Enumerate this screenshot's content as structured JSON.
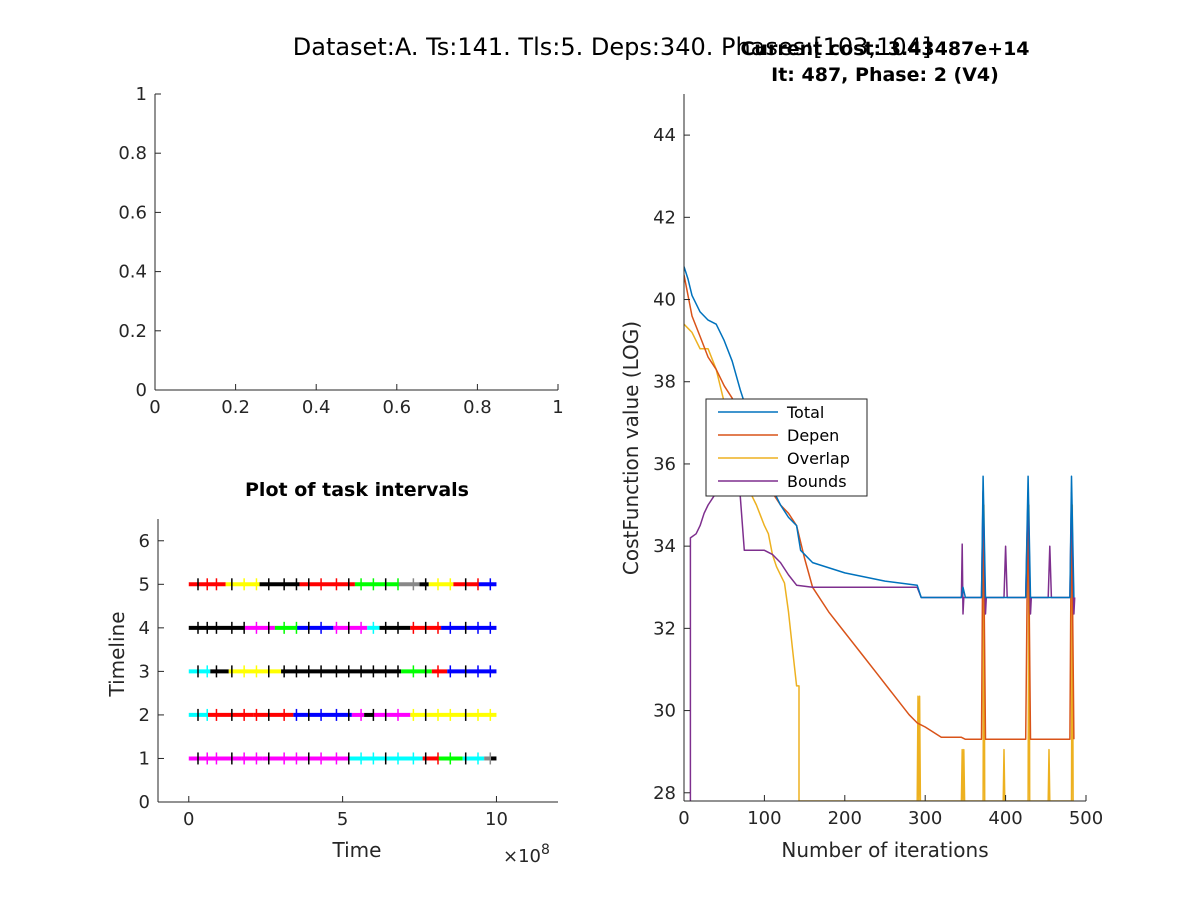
{
  "figure": {
    "suptitle": "Dataset:A. Ts:141. Tls:5. Deps:340. Phases:[103,104]"
  },
  "chart_data": [
    {
      "type": "line",
      "title": "",
      "xlabel": "",
      "ylabel": "",
      "xlim": [
        0,
        1
      ],
      "ylim": [
        0,
        1
      ],
      "xticks": [
        "0",
        "0.2",
        "0.4",
        "0.6",
        "0.8",
        "1"
      ],
      "yticks": [
        "0",
        "0.2",
        "0.4",
        "0.6",
        "0.8",
        "1"
      ],
      "series": []
    },
    {
      "type": "scatter",
      "title": "Plot of task intervals",
      "xlabel": "Time",
      "ylabel": "Timeline",
      "x_multiplier_label": "×10",
      "x_multiplier_exp": "8",
      "xlim": [
        -1,
        12
      ],
      "ylim": [
        0,
        6.5
      ],
      "xticks": [
        "0",
        "5",
        "10"
      ],
      "yticks": [
        "0",
        "1",
        "2",
        "3",
        "4",
        "5",
        "6"
      ],
      "timelines": [
        {
          "y": 1,
          "segments": [
            [
              0,
              1.7,
              "#ff00ff"
            ],
            [
              1.7,
              2.4,
              "#ff00ff"
            ],
            [
              2.4,
              5.2,
              "#ff00ff"
            ],
            [
              5.2,
              7.6,
              "#00ffff"
            ],
            [
              7.6,
              8.1,
              "#ff0000"
            ],
            [
              8.1,
              8.9,
              "#00ff00"
            ],
            [
              8.9,
              9.6,
              "#00ffff"
            ],
            [
              9.6,
              9.8,
              "#888888"
            ],
            [
              9.8,
              10,
              "#000000"
            ]
          ]
        },
        {
          "y": 2,
          "segments": [
            [
              0,
              0.6,
              "#00ffff"
            ],
            [
              0.6,
              2.1,
              "#ff0000"
            ],
            [
              2.1,
              3.4,
              "#ff0000"
            ],
            [
              3.4,
              5.3,
              "#0000ff"
            ],
            [
              5.3,
              5.7,
              "#ff00ff"
            ],
            [
              5.7,
              6.0,
              "#000000"
            ],
            [
              6.0,
              7.2,
              "#ff00ff"
            ],
            [
              7.2,
              10,
              "#ffff00"
            ]
          ]
        },
        {
          "y": 3,
          "segments": [
            [
              0,
              0.7,
              "#00ffff"
            ],
            [
              0.7,
              1.3,
              "#000000"
            ],
            [
              1.3,
              3.0,
              "#ffff00"
            ],
            [
              3.0,
              6.9,
              "#000000"
            ],
            [
              6.9,
              7.9,
              "#00ff00"
            ],
            [
              7.9,
              8.4,
              "#ff0000"
            ],
            [
              8.4,
              10,
              "#0000ff"
            ]
          ]
        },
        {
          "y": 4,
          "segments": [
            [
              0,
              1.8,
              "#000000"
            ],
            [
              1.8,
              2.8,
              "#ff00ff"
            ],
            [
              2.8,
              3.5,
              "#00ff00"
            ],
            [
              3.5,
              4.7,
              "#0000ff"
            ],
            [
              4.7,
              5.8,
              "#ff00ff"
            ],
            [
              5.8,
              6.2,
              "#00ffff"
            ],
            [
              6.2,
              7.2,
              "#000000"
            ],
            [
              7.2,
              8.2,
              "#ff0000"
            ],
            [
              8.2,
              10,
              "#0000ff"
            ]
          ]
        },
        {
          "y": 5,
          "segments": [
            [
              0,
              1.2,
              "#ff0000"
            ],
            [
              1.2,
              2.3,
              "#ffff00"
            ],
            [
              2.3,
              3.6,
              "#000000"
            ],
            [
              3.6,
              5.4,
              "#ff0000"
            ],
            [
              5.4,
              6.8,
              "#00ff00"
            ],
            [
              6.8,
              7.5,
              "#888888"
            ],
            [
              7.5,
              7.8,
              "#000000"
            ],
            [
              7.8,
              8.6,
              "#ffff00"
            ],
            [
              8.6,
              9.4,
              "#ff0000"
            ],
            [
              9.4,
              10,
              "#0000ff"
            ]
          ]
        }
      ],
      "tick_marks": [
        0.3,
        0.6,
        0.9,
        1.4,
        1.8,
        2.2,
        2.6,
        3.1,
        3.5,
        3.9,
        4.3,
        4.8,
        5.2,
        5.6,
        6.0,
        6.4,
        6.8,
        7.3,
        7.7,
        8.1,
        8.5,
        9.0,
        9.4,
        9.8
      ]
    },
    {
      "type": "line",
      "title": "Current cost: 3.43487e+14",
      "subtitle": "It: 487, Phase: 2 (V4)",
      "xlabel": "Number of iterations",
      "ylabel": "CostFunction value (LOG)",
      "xlim": [
        0,
        500
      ],
      "ylim": [
        27.8,
        45
      ],
      "xticks": [
        "0",
        "100",
        "200",
        "300",
        "400",
        "500"
      ],
      "yticks": [
        "28",
        "30",
        "32",
        "34",
        "36",
        "38",
        "40",
        "42",
        "44"
      ],
      "legend_position": "center-left",
      "series": [
        {
          "name": "Total",
          "color": "#0072bd",
          "points": [
            [
              0,
              40.8
            ],
            [
              5,
              40.5
            ],
            [
              10,
              40.1
            ],
            [
              20,
              39.7
            ],
            [
              30,
              39.5
            ],
            [
              40,
              39.4
            ],
            [
              50,
              39.0
            ],
            [
              60,
              38.5
            ],
            [
              70,
              37.8
            ],
            [
              80,
              37.2
            ],
            [
              90,
              36.6
            ],
            [
              100,
              36.0
            ],
            [
              110,
              35.4
            ],
            [
              120,
              35.0
            ],
            [
              130,
              34.7
            ],
            [
              140,
              34.5
            ],
            [
              145,
              33.9
            ],
            [
              160,
              33.6
            ],
            [
              200,
              33.35
            ],
            [
              250,
              33.15
            ],
            [
              290,
              33.05
            ],
            [
              295,
              32.75
            ],
            [
              345,
              32.75
            ],
            [
              347,
              33.0
            ],
            [
              350,
              32.75
            ],
            [
              370,
              32.75
            ],
            [
              372,
              35.7
            ],
            [
              375,
              32.75
            ],
            [
              425,
              32.75
            ],
            [
              428,
              35.7
            ],
            [
              431,
              32.75
            ],
            [
              480,
              32.75
            ],
            [
              482,
              35.7
            ],
            [
              485,
              32.75
            ]
          ]
        },
        {
          "name": "Depen",
          "color": "#d95319",
          "points": [
            [
              0,
              40.6
            ],
            [
              5,
              40.1
            ],
            [
              10,
              39.6
            ],
            [
              20,
              39.1
            ],
            [
              30,
              38.6
            ],
            [
              40,
              38.3
            ],
            [
              50,
              37.9
            ],
            [
              60,
              37.6
            ],
            [
              70,
              37.2
            ],
            [
              80,
              36.8
            ],
            [
              90,
              36.3
            ],
            [
              100,
              35.7
            ],
            [
              110,
              35.3
            ],
            [
              120,
              35.0
            ],
            [
              130,
              34.8
            ],
            [
              140,
              34.5
            ],
            [
              150,
              33.7
            ],
            [
              160,
              33.0
            ],
            [
              180,
              32.4
            ],
            [
              200,
              31.9
            ],
            [
              220,
              31.4
            ],
            [
              240,
              30.9
            ],
            [
              260,
              30.4
            ],
            [
              280,
              29.9
            ],
            [
              290,
              29.7
            ],
            [
              300,
              29.6
            ],
            [
              320,
              29.35
            ],
            [
              345,
              29.35
            ],
            [
              350,
              29.3
            ],
            [
              370,
              29.3
            ],
            [
              372,
              35.3
            ],
            [
              375,
              29.3
            ],
            [
              425,
              29.3
            ],
            [
              428,
              35.3
            ],
            [
              431,
              29.3
            ],
            [
              480,
              29.3
            ],
            [
              482,
              35.3
            ],
            [
              485,
              29.3
            ]
          ]
        },
        {
          "name": "Overlap",
          "color": "#edb120",
          "points": [
            [
              0,
              39.4
            ],
            [
              5,
              39.3
            ],
            [
              10,
              39.2
            ],
            [
              20,
              38.8
            ],
            [
              30,
              38.8
            ],
            [
              40,
              38.3
            ],
            [
              50,
              37.5
            ],
            [
              60,
              36.9
            ],
            [
              70,
              36.0
            ],
            [
              80,
              35.4
            ],
            [
              90,
              35.0
            ],
            [
              100,
              34.5
            ],
            [
              105,
              34.3
            ],
            [
              110,
              33.8
            ],
            [
              115,
              33.5
            ],
            [
              120,
              33.3
            ],
            [
              125,
              33.1
            ],
            [
              130,
              32.4
            ],
            [
              135,
              31.5
            ],
            [
              140,
              30.6
            ],
            [
              143,
              30.6
            ],
            [
              143,
              27.8
            ],
            [
              290,
              27.8
            ],
            [
              291,
              30.35
            ],
            [
              292,
              27.8
            ],
            [
              293,
              30.35
            ],
            [
              294,
              27.8
            ],
            [
              345,
              27.8
            ],
            [
              346,
              29.05
            ],
            [
              347,
              27.8
            ],
            [
              348,
              29.05
            ],
            [
              349,
              27.8
            ],
            [
              372,
              27.8
            ],
            [
              373,
              35.0
            ],
            [
              374,
              27.8
            ],
            [
              397,
              27.8
            ],
            [
              398,
              29.05
            ],
            [
              399,
              27.8
            ],
            [
              428,
              27.8
            ],
            [
              429,
              35.0
            ],
            [
              430,
              27.8
            ],
            [
              453,
              27.8
            ],
            [
              454,
              29.05
            ],
            [
              455,
              27.8
            ],
            [
              482,
              27.8
            ],
            [
              483,
              35.0
            ],
            [
              484,
              27.8
            ]
          ]
        },
        {
          "name": "Bounds",
          "color": "#7e2f8e",
          "points": [
            [
              8,
              27.8
            ],
            [
              8,
              34.2
            ],
            [
              15,
              34.3
            ],
            [
              20,
              34.5
            ],
            [
              25,
              34.8
            ],
            [
              30,
              35.0
            ],
            [
              40,
              35.3
            ],
            [
              50,
              35.7
            ],
            [
              60,
              36.0
            ],
            [
              70,
              35.2
            ],
            [
              75,
              33.9
            ],
            [
              100,
              33.9
            ],
            [
              110,
              33.8
            ],
            [
              120,
              33.6
            ],
            [
              130,
              33.3
            ],
            [
              140,
              33.05
            ],
            [
              160,
              33.0
            ],
            [
              200,
              33.0
            ],
            [
              290,
              33.0
            ],
            [
              295,
              32.75
            ],
            [
              345,
              32.75
            ],
            [
              346,
              34.05
            ],
            [
              347,
              32.35
            ],
            [
              348,
              32.75
            ],
            [
              370,
              32.75
            ],
            [
              372,
              35.35
            ],
            [
              375,
              32.35
            ],
            [
              376,
              32.75
            ],
            [
              398,
              32.75
            ],
            [
              400,
              34.0
            ],
            [
              402,
              32.75
            ],
            [
              425,
              32.75
            ],
            [
              428,
              35.3
            ],
            [
              431,
              32.35
            ],
            [
              432,
              32.75
            ],
            [
              453,
              32.75
            ],
            [
              455,
              34.0
            ],
            [
              457,
              32.75
            ],
            [
              480,
              32.75
            ],
            [
              482,
              35.3
            ],
            [
              485,
              32.35
            ],
            [
              486,
              32.75
            ]
          ]
        }
      ]
    }
  ]
}
